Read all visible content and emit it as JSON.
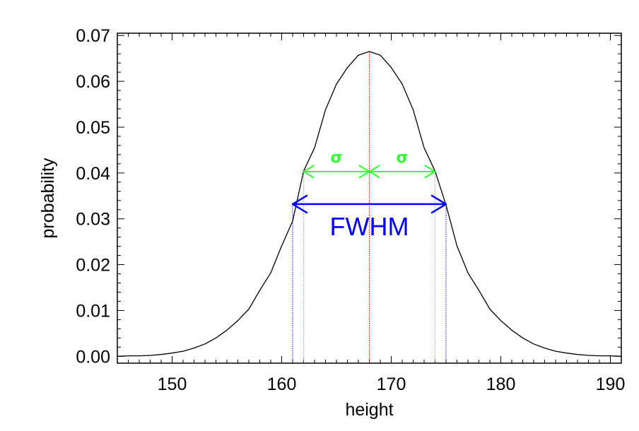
{
  "chart_data": {
    "type": "line",
    "title": "",
    "xlabel": "height",
    "ylabel": "probability",
    "xlim": [
      145,
      191
    ],
    "ylim": [
      -0.0015,
      0.0705
    ],
    "x_ticks": [
      150,
      160,
      170,
      180,
      190
    ],
    "x_tick_labels": [
      "150",
      "160",
      "170",
      "180",
      "190"
    ],
    "y_ticks": [
      0.0,
      0.01,
      0.02,
      0.03,
      0.04,
      0.05,
      0.06,
      0.07
    ],
    "y_tick_labels": [
      "0.00",
      "0.01",
      "0.02",
      "0.03",
      "0.04",
      "0.05",
      "0.06",
      "0.07"
    ],
    "grid": false,
    "series": [
      {
        "color": "#000000",
        "x": [
          145,
          146,
          147,
          148,
          149,
          150,
          151,
          152,
          153,
          154,
          155,
          156,
          157,
          158,
          159,
          160,
          161,
          162,
          163,
          164,
          165,
          166,
          167,
          168,
          169,
          170,
          171,
          172,
          173,
          174,
          175,
          176,
          177,
          178,
          179,
          180,
          181,
          182,
          183,
          184,
          185,
          186,
          187,
          188,
          189,
          190,
          191
        ],
        "y": [
          0.0,
          0.0001,
          0.0001,
          0.0002,
          0.0004,
          0.0007,
          0.0011,
          0.0018,
          0.0027,
          0.004,
          0.0057,
          0.0078,
          0.0103,
          0.0144,
          0.0182,
          0.0241,
          0.0295,
          0.0404,
          0.0455,
          0.0538,
          0.0594,
          0.063,
          0.0657,
          0.0665,
          0.0657,
          0.063,
          0.0594,
          0.0538,
          0.0455,
          0.0404,
          0.033,
          0.0241,
          0.0182,
          0.0144,
          0.0103,
          0.0078,
          0.0057,
          0.004,
          0.0027,
          0.0018,
          0.0011,
          0.0007,
          0.0004,
          0.0002,
          0.0001,
          0.0001,
          0.0
        ]
      }
    ],
    "annotations": {
      "mean": {
        "x": 168,
        "y_top": 0.0665,
        "color": "#ff0000"
      },
      "sigma": {
        "label": "σ",
        "y": 0.0403,
        "left_x": 162,
        "center_x": 168,
        "right_x": 174,
        "color": "#33ff33"
      },
      "fwhm": {
        "label": "FWHM",
        "y": 0.0332,
        "left_x": 161,
        "right_x": 175,
        "color": "#0000ff"
      }
    }
  }
}
